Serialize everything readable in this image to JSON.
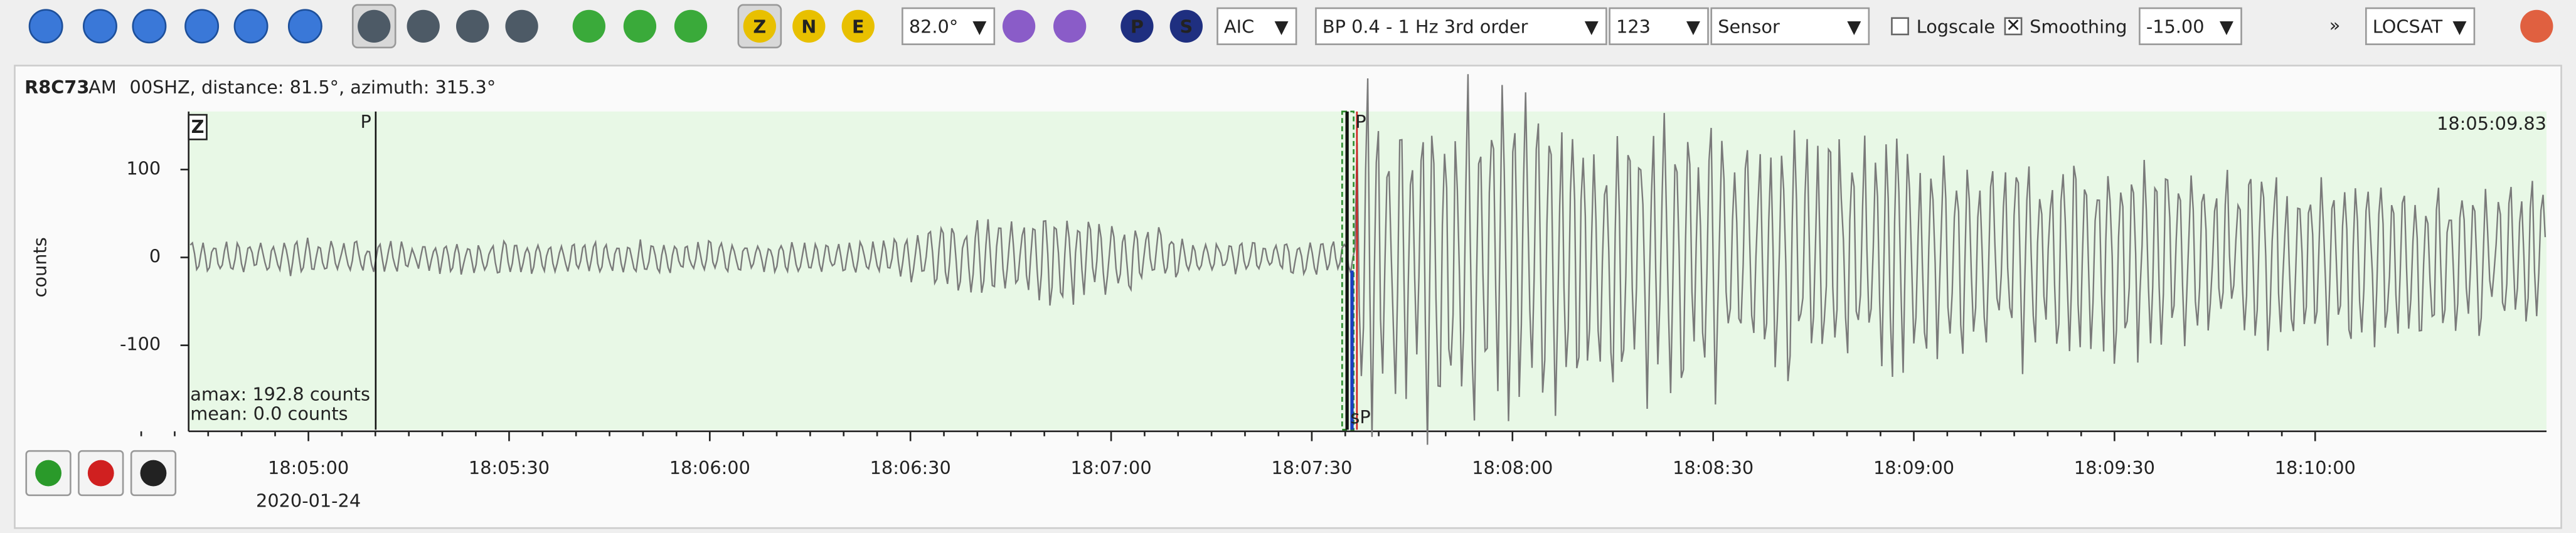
{
  "toolbar": {
    "components": [
      "Z",
      "N",
      "E"
    ],
    "phases": [
      "P",
      "S"
    ],
    "ratio": "82.0°",
    "picker": "AIC",
    "filter": "BP 0.4 - 1 Hz  3rd order",
    "stream": "123",
    "unit": "Sensor",
    "logscale": "Logscale",
    "smoothing": "Smoothing",
    "offset": "-15.00",
    "more": "»",
    "locator": "LOCSAT"
  },
  "header": {
    "station": "R8C73",
    "network": "AM",
    "info": "00SHZ, distance: 81.5°, azimuth: 315.3°"
  },
  "trace": {
    "component": "Z",
    "time": "18:05:09.83",
    "ylabel": "counts",
    "ylim": [
      -196,
      166
    ],
    "yticks": [
      100,
      0,
      -100
    ],
    "xtick_labels": [
      "18:05:00",
      "18:05:30",
      "18:06:00",
      "18:06:30",
      "18:07:00",
      "18:07:30",
      "18:08:00",
      "18:08:30",
      "18:09:00",
      "18:09:30",
      "18:10:00"
    ],
    "date": "2020-01-24",
    "pick_p": "P",
    "pick_sp": "sP",
    "pick_p2": "P",
    "amax": "amax: 192.8 counts",
    "mean": "mean: 0.0 counts"
  }
}
